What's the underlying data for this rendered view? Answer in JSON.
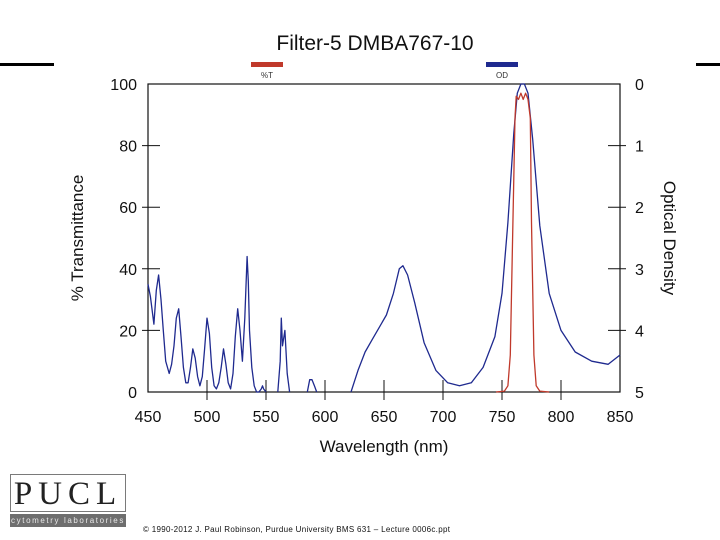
{
  "slide": {
    "copyright": "© 1990-2012 J. Paul Robinson, Purdue University BMS 631 – Lecture 0006c.ppt",
    "logo": {
      "text": "PUCL",
      "subtitle": "cytometry laboratories"
    }
  },
  "chart_data": {
    "type": "line",
    "title": "Filter-5 DMBA767-10",
    "xlabel": "Wavelength (nm)",
    "ylabel": "% Transmittance",
    "y2label": "Optical Density",
    "xlim": [
      450,
      850
    ],
    "ylim": [
      0,
      100
    ],
    "y2lim": [
      5,
      0
    ],
    "x_ticks": [
      "450",
      "500",
      "550",
      "600",
      "650",
      "700",
      "750",
      "800",
      "850"
    ],
    "y_ticks": [
      "0",
      "20",
      "40",
      "60",
      "80",
      "100"
    ],
    "y2_ticks": [
      "5",
      "4",
      "3",
      "2",
      "1",
      "0"
    ],
    "grid": false,
    "legend": "top",
    "series": [
      {
        "name": "%T",
        "color": "#c0392b",
        "x": [
          745,
          752,
          755,
          757,
          759,
          761,
          762,
          764,
          766,
          768,
          770,
          772,
          774,
          775,
          777,
          779,
          782,
          790
        ],
        "y": [
          0,
          0.3,
          2,
          12,
          50,
          89,
          96,
          95,
          97,
          95,
          97,
          95,
          89,
          55,
          12,
          2,
          0.3,
          0
        ]
      },
      {
        "name": "OD",
        "color": "#1f2a8f",
        "x": [
          450,
          452,
          455,
          457,
          459,
          461,
          463,
          465,
          468,
          470,
          472,
          474,
          476,
          478,
          480,
          482,
          484,
          486,
          488,
          490,
          492,
          494,
          496,
          498,
          500,
          502,
          504,
          506,
          508,
          510,
          512,
          514,
          516,
          518,
          520,
          522,
          524,
          526,
          528,
          530,
          532,
          534,
          535,
          536,
          538,
          540,
          542,
          544,
          546,
          547,
          548,
          550,
          null,
          560,
          562,
          563,
          564,
          566,
          568,
          570,
          null,
          585,
          587,
          589,
          591,
          593,
          null,
          622,
          628,
          634,
          640,
          646,
          652,
          658,
          663,
          666,
          670,
          676,
          684,
          694,
          704,
          714,
          724,
          734,
          744,
          750,
          755,
          760,
          763,
          766,
          769,
          772,
          776,
          782,
          790,
          800,
          812,
          826,
          840,
          850
        ],
        "y": [
          35,
          31,
          22,
          33,
          38,
          30,
          20,
          10,
          6,
          9,
          15,
          24,
          27,
          18,
          8,
          3,
          3,
          8,
          14,
          11,
          5,
          2,
          5,
          14,
          24,
          19,
          8,
          2,
          1,
          3,
          8,
          14,
          9,
          3,
          1,
          6,
          18,
          27,
          20,
          10,
          24,
          44,
          36,
          20,
          8,
          2,
          0,
          0,
          1,
          2,
          1,
          0,
          null,
          0,
          10,
          24,
          15,
          20,
          6,
          0,
          null,
          0,
          4,
          4,
          2,
          0,
          null,
          0,
          7,
          13,
          17,
          21,
          25,
          32,
          40,
          41,
          38,
          29,
          16,
          7,
          3,
          2,
          3,
          8,
          18,
          32,
          55,
          84,
          97,
          100,
          100,
          97,
          82,
          54,
          32,
          20,
          13,
          10,
          9,
          12
        ]
      }
    ]
  }
}
